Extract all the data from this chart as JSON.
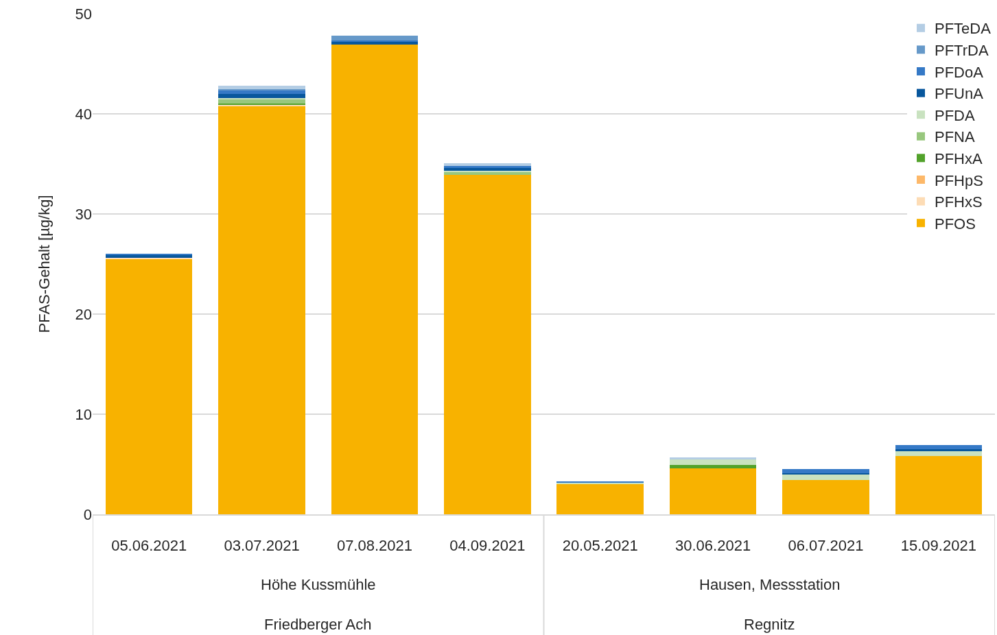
{
  "chart_data": {
    "type": "bar",
    "stacked": true,
    "ylabel": "PFAS-Gehalt [µg/kg]",
    "categories": [
      "05.06.2021",
      "03.07.2021",
      "07.08.2021",
      "04.09.2021",
      "20.05.2021",
      "30.06.2021",
      "06.07.2021",
      "15.09.2021"
    ],
    "annotations": [
      "Höhe Kussmühle",
      "Friedberger Ach",
      "Hausen, Messstation",
      "Regnitz"
    ],
    "series": [
      {
        "name": "PFOS",
        "color": "#f8b200",
        "values": [
          25.5,
          40.8,
          46.9,
          33.9,
          3.0,
          4.6,
          3.4,
          5.8
        ]
      },
      {
        "name": "PFHxS",
        "color": "#fddcb5",
        "values": [
          0.1,
          0.1,
          0,
          0,
          0,
          0,
          0,
          0
        ]
      },
      {
        "name": "PFHpS",
        "color": "#fdb869",
        "values": [
          0,
          0,
          0,
          0,
          0,
          0,
          0,
          0
        ]
      },
      {
        "name": "PFHxA",
        "color": "#52a22b",
        "values": [
          0,
          0.1,
          0,
          0,
          0,
          0.3,
          0,
          0
        ]
      },
      {
        "name": "PFNA",
        "color": "#98c77e",
        "values": [
          0,
          0.5,
          0,
          0.3,
          0,
          0,
          0,
          0
        ]
      },
      {
        "name": "PFDA",
        "color": "#c9e2c0",
        "values": [
          0,
          0.1,
          0,
          0.1,
          0.2,
          0.6,
          0.6,
          0.5
        ]
      },
      {
        "name": "PFUnA",
        "color": "#08579d",
        "values": [
          0.3,
          0.4,
          0.3,
          0.3,
          0,
          0,
          0.1,
          0.2
        ]
      },
      {
        "name": "PFDoA",
        "color": "#3579c6",
        "values": [
          0.1,
          0.3,
          0.1,
          0.2,
          0.1,
          0,
          0.4,
          0.4
        ]
      },
      {
        "name": "PFTrDA",
        "color": "#6699c9",
        "values": [
          0,
          0.2,
          0.5,
          0,
          0,
          0,
          0,
          0
        ]
      },
      {
        "name": "PFTeDA",
        "color": "#b4cde4",
        "values": [
          0,
          0.3,
          0,
          0.3,
          0,
          0.2,
          0,
          0
        ]
      }
    ],
    "ylim": [
      0,
      50
    ],
    "yticks": [
      0,
      10,
      20,
      30,
      40,
      50
    ],
    "grid": "y",
    "legend": "top right"
  }
}
